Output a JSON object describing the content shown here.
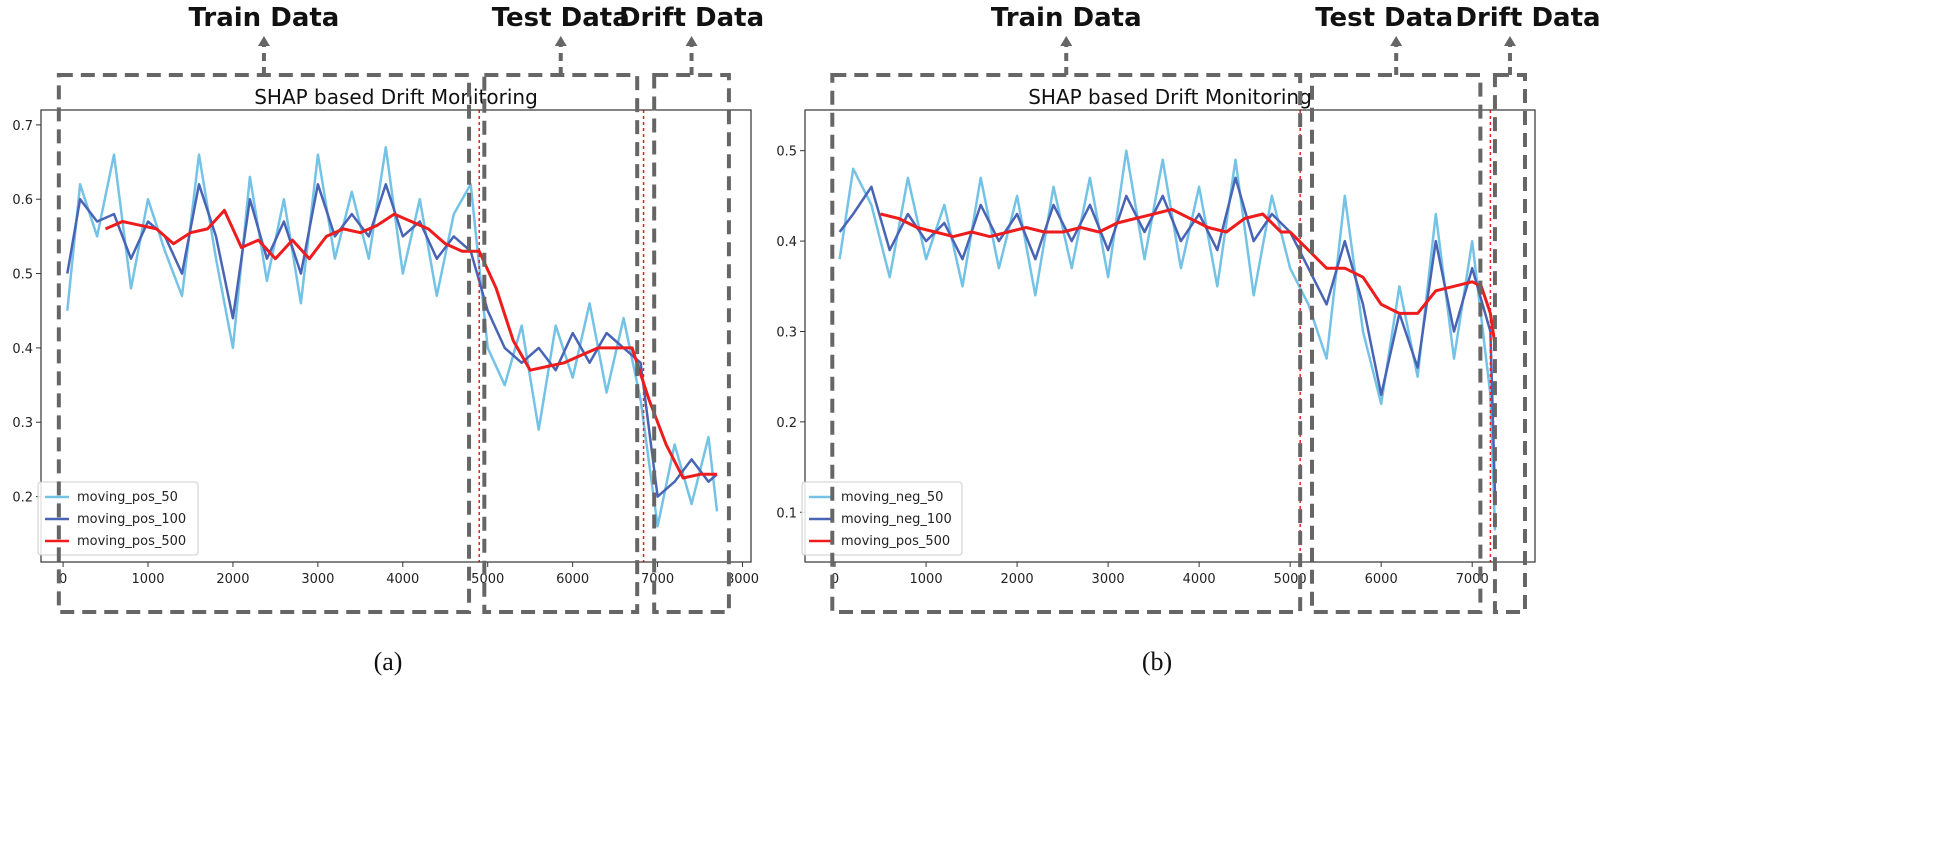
{
  "chart_data": [
    {
      "type": "line",
      "title": "SHAP based Drift Monitoring",
      "caption": "(a)",
      "xlim": [
        -260,
        8100
      ],
      "ylim": [
        0.112,
        0.72
      ],
      "xticks": [
        0,
        1000,
        2000,
        3000,
        4000,
        5000,
        6000,
        7000,
        8000
      ],
      "yticks": [
        0.2,
        0.3,
        0.4,
        0.5,
        0.6,
        0.7
      ],
      "legend_position": "lower-left",
      "drift_lines": [
        4900,
        6835
      ],
      "regions": [
        {
          "label": "Train Data",
          "x": [
            -50,
            4780
          ]
        },
        {
          "label": "Test Data",
          "x": [
            4960,
            6760
          ]
        },
        {
          "label": "Drift Data",
          "x": [
            6960,
            7840
          ]
        }
      ],
      "series": [
        {
          "name": "moving_pos_50",
          "color": "#74c3e6",
          "x": [
            50,
            200,
            400,
            600,
            800,
            1000,
            1200,
            1400,
            1600,
            1800,
            2000,
            2200,
            2400,
            2600,
            2800,
            3000,
            3200,
            3400,
            3600,
            3800,
            4000,
            4200,
            4400,
            4600,
            4800,
            5000,
            5200,
            5400,
            5600,
            5800,
            6000,
            6200,
            6400,
            6600,
            6800,
            7000,
            7200,
            7400,
            7600,
            7700
          ],
          "y": [
            0.45,
            0.62,
            0.55,
            0.66,
            0.48,
            0.6,
            0.53,
            0.47,
            0.66,
            0.52,
            0.4,
            0.63,
            0.49,
            0.6,
            0.46,
            0.66,
            0.52,
            0.61,
            0.52,
            0.67,
            0.5,
            0.6,
            0.47,
            0.58,
            0.62,
            0.4,
            0.35,
            0.43,
            0.29,
            0.43,
            0.36,
            0.46,
            0.34,
            0.44,
            0.33,
            0.16,
            0.27,
            0.19,
            0.28,
            0.18
          ]
        },
        {
          "name": "moving_pos_100",
          "color": "#4a64b5",
          "x": [
            50,
            200,
            400,
            600,
            800,
            1000,
            1200,
            1400,
            1600,
            1800,
            2000,
            2200,
            2400,
            2600,
            2800,
            3000,
            3200,
            3400,
            3600,
            3800,
            4000,
            4200,
            4400,
            4600,
            4800,
            5000,
            5200,
            5400,
            5600,
            5800,
            6000,
            6200,
            6400,
            6600,
            6800,
            7000,
            7200,
            7400,
            7600,
            7700
          ],
          "y": [
            0.5,
            0.6,
            0.57,
            0.58,
            0.52,
            0.57,
            0.55,
            0.5,
            0.62,
            0.55,
            0.44,
            0.6,
            0.52,
            0.57,
            0.5,
            0.62,
            0.55,
            0.58,
            0.55,
            0.62,
            0.55,
            0.57,
            0.52,
            0.55,
            0.53,
            0.45,
            0.4,
            0.38,
            0.4,
            0.37,
            0.42,
            0.38,
            0.42,
            0.4,
            0.38,
            0.2,
            0.22,
            0.25,
            0.22,
            0.23
          ]
        },
        {
          "name": "moving_pos_500",
          "color": "#ee1c1c",
          "x": [
            500,
            700,
            900,
            1100,
            1300,
            1500,
            1700,
            1900,
            2100,
            2300,
            2500,
            2700,
            2900,
            3100,
            3300,
            3500,
            3700,
            3900,
            4100,
            4300,
            4500,
            4700,
            4900,
            5100,
            5300,
            5500,
            5700,
            5900,
            6100,
            6300,
            6500,
            6700,
            6900,
            7100,
            7300,
            7500,
            7700
          ],
          "y": [
            0.56,
            0.57,
            0.565,
            0.56,
            0.54,
            0.555,
            0.56,
            0.585,
            0.535,
            0.545,
            0.52,
            0.545,
            0.52,
            0.55,
            0.56,
            0.555,
            0.565,
            0.58,
            0.57,
            0.56,
            0.54,
            0.53,
            0.53,
            0.48,
            0.41,
            0.37,
            0.375,
            0.38,
            0.39,
            0.4,
            0.4,
            0.4,
            0.33,
            0.27,
            0.225,
            0.23,
            0.23
          ]
        }
      ]
    },
    {
      "type": "line",
      "title": "SHAP based Drift Monitoring",
      "caption": "(b)",
      "xlim": [
        -330,
        7690
      ],
      "ylim": [
        0.045,
        0.545
      ],
      "xticks": [
        0,
        1000,
        2000,
        3000,
        4000,
        5000,
        6000,
        7000
      ],
      "yticks": [
        0.1,
        0.2,
        0.3,
        0.4,
        0.5
      ],
      "legend_position": "lower-left",
      "drift_lines": [
        5110,
        7200
      ],
      "regions": [
        {
          "label": "Train Data",
          "x": [
            -30,
            5110
          ]
        },
        {
          "label": "Test Data",
          "x": [
            5240,
            7090
          ]
        },
        {
          "label": "Drift Data",
          "x": [
            7250,
            7580
          ]
        }
      ],
      "series": [
        {
          "name": "moving_neg_50",
          "color": "#74c3e6",
          "x": [
            50,
            200,
            400,
            600,
            800,
            1000,
            1200,
            1400,
            1600,
            1800,
            2000,
            2200,
            2400,
            2600,
            2800,
            3000,
            3200,
            3400,
            3600,
            3800,
            4000,
            4200,
            4400,
            4600,
            4800,
            5000,
            5200,
            5400,
            5600,
            5800,
            6000,
            6200,
            6400,
            6600,
            6800,
            7000,
            7200,
            7250
          ],
          "y": [
            0.38,
            0.48,
            0.44,
            0.36,
            0.47,
            0.38,
            0.44,
            0.35,
            0.47,
            0.37,
            0.45,
            0.34,
            0.46,
            0.37,
            0.47,
            0.36,
            0.5,
            0.38,
            0.49,
            0.37,
            0.46,
            0.35,
            0.49,
            0.34,
            0.45,
            0.37,
            0.33,
            0.27,
            0.45,
            0.3,
            0.22,
            0.35,
            0.25,
            0.43,
            0.27,
            0.4,
            0.23,
            0.08
          ]
        },
        {
          "name": "moving_neg_100",
          "color": "#4a64b5",
          "x": [
            50,
            200,
            400,
            600,
            800,
            1000,
            1200,
            1400,
            1600,
            1800,
            2000,
            2200,
            2400,
            2600,
            2800,
            3000,
            3200,
            3400,
            3600,
            3800,
            4000,
            4200,
            4400,
            4600,
            4800,
            5000,
            5200,
            5400,
            5600,
            5800,
            6000,
            6200,
            6400,
            6600,
            6800,
            7000,
            7200,
            7250
          ],
          "y": [
            0.41,
            0.43,
            0.46,
            0.39,
            0.43,
            0.4,
            0.42,
            0.38,
            0.44,
            0.4,
            0.43,
            0.38,
            0.44,
            0.4,
            0.44,
            0.39,
            0.45,
            0.41,
            0.45,
            0.4,
            0.43,
            0.39,
            0.47,
            0.4,
            0.43,
            0.41,
            0.37,
            0.33,
            0.4,
            0.33,
            0.23,
            0.32,
            0.26,
            0.4,
            0.3,
            0.37,
            0.3,
            0.12
          ]
        },
        {
          "name": "moving_pos_500",
          "color": "#ee1c1c",
          "x": [
            500,
            700,
            900,
            1100,
            1300,
            1500,
            1700,
            1900,
            2100,
            2300,
            2500,
            2700,
            2900,
            3100,
            3300,
            3500,
            3700,
            3900,
            4100,
            4300,
            4500,
            4700,
            4900,
            5000,
            5200,
            5400,
            5600,
            5800,
            6000,
            6200,
            6400,
            6600,
            6800,
            7000,
            7100,
            7200,
            7250
          ],
          "y": [
            0.43,
            0.425,
            0.415,
            0.41,
            0.405,
            0.41,
            0.405,
            0.41,
            0.415,
            0.41,
            0.41,
            0.415,
            0.41,
            0.42,
            0.425,
            0.43,
            0.435,
            0.425,
            0.415,
            0.41,
            0.425,
            0.43,
            0.41,
            0.41,
            0.39,
            0.37,
            0.37,
            0.36,
            0.33,
            0.32,
            0.32,
            0.345,
            0.35,
            0.355,
            0.35,
            0.32,
            0.285
          ]
        }
      ]
    }
  ]
}
